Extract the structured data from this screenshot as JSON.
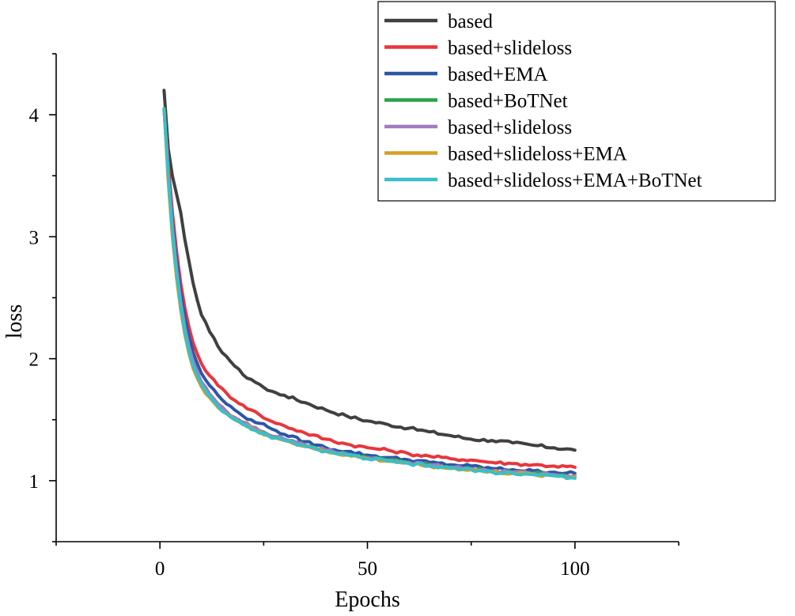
{
  "chart_data": {
    "type": "line",
    "title": "",
    "xlabel": "Epochs",
    "ylabel": "loss",
    "xlim": [
      -25,
      125
    ],
    "ylim": [
      0.5,
      4.5
    ],
    "xticks": [
      0,
      50,
      100
    ],
    "yticks": [
      1,
      2,
      3,
      4
    ],
    "grid": false,
    "legend_position": "top-right",
    "series": [
      {
        "name": "based",
        "color": "#404040",
        "points": [
          [
            1,
            4.2
          ],
          [
            2,
            3.72
          ],
          [
            3,
            3.5
          ],
          [
            4,
            3.35
          ],
          [
            5,
            3.2
          ],
          [
            6,
            2.98
          ],
          [
            7,
            2.8
          ],
          [
            8,
            2.62
          ],
          [
            9,
            2.48
          ],
          [
            10,
            2.36
          ],
          [
            12,
            2.22
          ],
          [
            14,
            2.1
          ],
          [
            16,
            2.02
          ],
          [
            18,
            1.94
          ],
          [
            20,
            1.87
          ],
          [
            22,
            1.83
          ],
          [
            24,
            1.79
          ],
          [
            26,
            1.74
          ],
          [
            28,
            1.72
          ],
          [
            30,
            1.7
          ],
          [
            35,
            1.64
          ],
          [
            40,
            1.58
          ],
          [
            45,
            1.53
          ],
          [
            50,
            1.49
          ],
          [
            55,
            1.46
          ],
          [
            60,
            1.43
          ],
          [
            65,
            1.4
          ],
          [
            70,
            1.37
          ],
          [
            75,
            1.34
          ],
          [
            80,
            1.33
          ],
          [
            85,
            1.31
          ],
          [
            90,
            1.29
          ],
          [
            95,
            1.27
          ],
          [
            100,
            1.25
          ]
        ]
      },
      {
        "name": "based+slideloss",
        "color": "#e8363c",
        "points": [
          [
            1,
            4.05
          ],
          [
            2,
            3.6
          ],
          [
            3,
            3.2
          ],
          [
            4,
            2.88
          ],
          [
            5,
            2.62
          ],
          [
            6,
            2.42
          ],
          [
            7,
            2.26
          ],
          [
            8,
            2.13
          ],
          [
            9,
            2.04
          ],
          [
            10,
            1.96
          ],
          [
            12,
            1.86
          ],
          [
            14,
            1.78
          ],
          [
            16,
            1.72
          ],
          [
            18,
            1.66
          ],
          [
            20,
            1.62
          ],
          [
            22,
            1.58
          ],
          [
            24,
            1.54
          ],
          [
            26,
            1.5
          ],
          [
            28,
            1.47
          ],
          [
            30,
            1.45
          ],
          [
            35,
            1.39
          ],
          [
            40,
            1.34
          ],
          [
            45,
            1.3
          ],
          [
            50,
            1.27
          ],
          [
            55,
            1.25
          ],
          [
            60,
            1.22
          ],
          [
            65,
            1.2
          ],
          [
            70,
            1.18
          ],
          [
            75,
            1.17
          ],
          [
            80,
            1.15
          ],
          [
            85,
            1.14
          ],
          [
            90,
            1.13
          ],
          [
            95,
            1.12
          ],
          [
            100,
            1.11
          ]
        ]
      },
      {
        "name": "based+EMA",
        "color": "#2c56a8",
        "points": [
          [
            1,
            4.05
          ],
          [
            2,
            3.55
          ],
          [
            3,
            3.12
          ],
          [
            4,
            2.8
          ],
          [
            5,
            2.54
          ],
          [
            6,
            2.34
          ],
          [
            7,
            2.18
          ],
          [
            8,
            2.05
          ],
          [
            9,
            1.96
          ],
          [
            10,
            1.88
          ],
          [
            12,
            1.78
          ],
          [
            14,
            1.7
          ],
          [
            16,
            1.63
          ],
          [
            18,
            1.58
          ],
          [
            20,
            1.53
          ],
          [
            22,
            1.5
          ],
          [
            24,
            1.47
          ],
          [
            26,
            1.44
          ],
          [
            28,
            1.41
          ],
          [
            30,
            1.38
          ],
          [
            35,
            1.32
          ],
          [
            40,
            1.27
          ],
          [
            45,
            1.24
          ],
          [
            50,
            1.21
          ],
          [
            55,
            1.19
          ],
          [
            60,
            1.17
          ],
          [
            65,
            1.15
          ],
          [
            70,
            1.13
          ],
          [
            75,
            1.12
          ],
          [
            80,
            1.1
          ],
          [
            85,
            1.09
          ],
          [
            90,
            1.08
          ],
          [
            95,
            1.07
          ],
          [
            100,
            1.06
          ]
        ]
      },
      {
        "name": "based+BoTNet",
        "color": "#2aa24a",
        "points": [
          [
            1,
            4.05
          ],
          [
            2,
            3.5
          ],
          [
            3,
            3.05
          ],
          [
            4,
            2.72
          ],
          [
            5,
            2.45
          ],
          [
            6,
            2.24
          ],
          [
            7,
            2.08
          ],
          [
            8,
            1.96
          ],
          [
            9,
            1.87
          ],
          [
            10,
            1.8
          ],
          [
            12,
            1.7
          ],
          [
            14,
            1.62
          ],
          [
            16,
            1.56
          ],
          [
            18,
            1.51
          ],
          [
            20,
            1.47
          ],
          [
            22,
            1.44
          ],
          [
            24,
            1.41
          ],
          [
            26,
            1.38
          ],
          [
            28,
            1.36
          ],
          [
            30,
            1.34
          ],
          [
            35,
            1.29
          ],
          [
            40,
            1.25
          ],
          [
            45,
            1.22
          ],
          [
            50,
            1.19
          ],
          [
            55,
            1.17
          ],
          [
            60,
            1.15
          ],
          [
            65,
            1.13
          ],
          [
            70,
            1.11
          ],
          [
            75,
            1.1
          ],
          [
            80,
            1.08
          ],
          [
            85,
            1.07
          ],
          [
            90,
            1.06
          ],
          [
            95,
            1.05
          ],
          [
            100,
            1.04
          ]
        ]
      },
      {
        "name": "based+slideloss",
        "color": "#a07cc0",
        "points": [
          [
            1,
            4.05
          ],
          [
            2,
            3.52
          ],
          [
            3,
            3.08
          ],
          [
            4,
            2.74
          ],
          [
            5,
            2.47
          ],
          [
            6,
            2.26
          ],
          [
            7,
            2.1
          ],
          [
            8,
            1.98
          ],
          [
            9,
            1.89
          ],
          [
            10,
            1.81
          ],
          [
            12,
            1.71
          ],
          [
            14,
            1.63
          ],
          [
            16,
            1.57
          ],
          [
            18,
            1.52
          ],
          [
            20,
            1.48
          ],
          [
            22,
            1.44
          ],
          [
            24,
            1.41
          ],
          [
            26,
            1.38
          ],
          [
            28,
            1.36
          ],
          [
            30,
            1.34
          ],
          [
            35,
            1.29
          ],
          [
            40,
            1.25
          ],
          [
            45,
            1.22
          ],
          [
            50,
            1.19
          ],
          [
            55,
            1.17
          ],
          [
            60,
            1.15
          ],
          [
            65,
            1.13
          ],
          [
            70,
            1.11
          ],
          [
            75,
            1.1
          ],
          [
            80,
            1.08
          ],
          [
            85,
            1.07
          ],
          [
            90,
            1.06
          ],
          [
            95,
            1.05
          ],
          [
            100,
            1.04
          ]
        ]
      },
      {
        "name": "based+slideloss+EMA",
        "color": "#d4a020",
        "points": [
          [
            1,
            4.05
          ],
          [
            2,
            3.45
          ],
          [
            3,
            3.0
          ],
          [
            4,
            2.66
          ],
          [
            5,
            2.4
          ],
          [
            6,
            2.2
          ],
          [
            7,
            2.04
          ],
          [
            8,
            1.92
          ],
          [
            9,
            1.84
          ],
          [
            10,
            1.77
          ],
          [
            12,
            1.68
          ],
          [
            14,
            1.6
          ],
          [
            16,
            1.55
          ],
          [
            18,
            1.5
          ],
          [
            20,
            1.46
          ],
          [
            22,
            1.43
          ],
          [
            24,
            1.4
          ],
          [
            26,
            1.37
          ],
          [
            28,
            1.35
          ],
          [
            30,
            1.33
          ],
          [
            35,
            1.28
          ],
          [
            40,
            1.24
          ],
          [
            45,
            1.21
          ],
          [
            50,
            1.18
          ],
          [
            55,
            1.16
          ],
          [
            60,
            1.14
          ],
          [
            65,
            1.12
          ],
          [
            70,
            1.1
          ],
          [
            75,
            1.09
          ],
          [
            80,
            1.07
          ],
          [
            85,
            1.06
          ],
          [
            90,
            1.05
          ],
          [
            95,
            1.04
          ],
          [
            100,
            1.03
          ]
        ]
      },
      {
        "name": "based+slideloss+EMA+BoTNet",
        "color": "#38c0c8",
        "points": [
          [
            1,
            4.05
          ],
          [
            2,
            3.5
          ],
          [
            3,
            3.04
          ],
          [
            4,
            2.7
          ],
          [
            5,
            2.43
          ],
          [
            6,
            2.22
          ],
          [
            7,
            2.06
          ],
          [
            8,
            1.94
          ],
          [
            9,
            1.86
          ],
          [
            10,
            1.79
          ],
          [
            12,
            1.69
          ],
          [
            14,
            1.61
          ],
          [
            16,
            1.55
          ],
          [
            18,
            1.5
          ],
          [
            20,
            1.46
          ],
          [
            22,
            1.42
          ],
          [
            24,
            1.39
          ],
          [
            26,
            1.37
          ],
          [
            28,
            1.35
          ],
          [
            30,
            1.33
          ],
          [
            35,
            1.28
          ],
          [
            40,
            1.24
          ],
          [
            45,
            1.21
          ],
          [
            50,
            1.18
          ],
          [
            55,
            1.16
          ],
          [
            60,
            1.14
          ],
          [
            65,
            1.12
          ],
          [
            70,
            1.1
          ],
          [
            75,
            1.09
          ],
          [
            80,
            1.07
          ],
          [
            85,
            1.06
          ],
          [
            90,
            1.05
          ],
          [
            95,
            1.04
          ],
          [
            100,
            1.02
          ]
        ]
      }
    ]
  }
}
